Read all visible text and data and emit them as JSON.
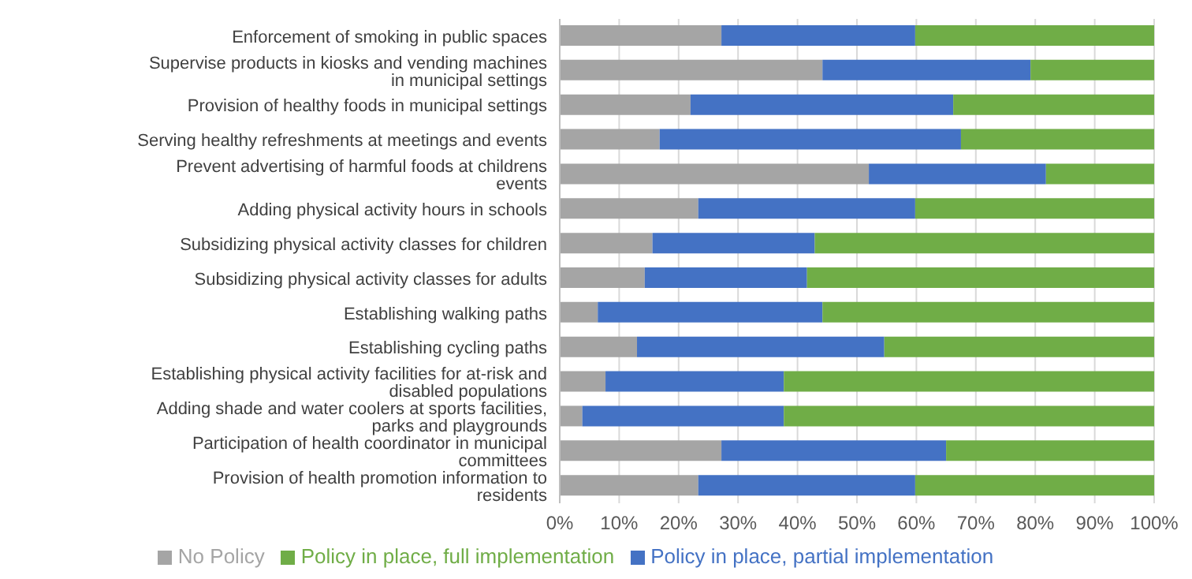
{
  "chart_data": {
    "type": "bar",
    "orientation": "horizontal",
    "stacked": true,
    "categories": [
      "Enforcement of smoking in public spaces",
      "Supervise products in kiosks and vending machines in municipal settings",
      "Provision of healthy foods in municipal settings",
      "Serving healthy refreshments at meetings and events",
      "Prevent advertising of harmful foods at childrens events",
      "Adding physical activity hours in schools",
      "Subsidizing physical activity classes for children",
      "Subsidizing physical activity classes for adults",
      "Establishing walking paths",
      "Establishing cycling paths",
      "Establishing physical activity facilities for at-risk and disabled populations",
      "Adding shade and water coolers at sports facilities, parks and playgrounds",
      "Participation of health coordinator in municipal committees",
      "Provision of health promotion information to residents"
    ],
    "series": [
      {
        "name": "No Policy",
        "color": "#a5a5a5",
        "values": [
          27.2,
          44.2,
          22,
          16.8,
          52,
          23.3,
          15.6,
          14.3,
          6.4,
          13,
          7.7,
          3.8,
          27.2,
          23.3
        ]
      },
      {
        "name": "Policy in place, partial implementation",
        "color": "#4472c4",
        "values": [
          32.6,
          35,
          44.2,
          50.7,
          29.8,
          36.5,
          27.3,
          27.3,
          37.8,
          41.6,
          30,
          33.9,
          37.8,
          36.5
        ]
      },
      {
        "name": "Policy in place, full implementation",
        "color": "#70ad47",
        "values": [
          40.2,
          20.8,
          33.8,
          32.5,
          18.2,
          40.2,
          57.1,
          58.4,
          55.8,
          45.4,
          62.3,
          62.3,
          35,
          40.2
        ]
      }
    ],
    "xlim": [
      0,
      100
    ],
    "xticks": [
      {
        "value": 0,
        "label": "0%"
      },
      {
        "value": 10,
        "label": "10%"
      },
      {
        "value": 20,
        "label": "20%"
      },
      {
        "value": 30,
        "label": "30%"
      },
      {
        "value": 40,
        "label": "40%"
      },
      {
        "value": 50,
        "label": "50%"
      },
      {
        "value": 60,
        "label": "60%"
      },
      {
        "value": 70,
        "label": "70%"
      },
      {
        "value": 80,
        "label": "80%"
      },
      {
        "value": 90,
        "label": "90%"
      },
      {
        "value": 100,
        "label": "100%"
      }
    ],
    "grid": "x",
    "legend": "bottom"
  }
}
